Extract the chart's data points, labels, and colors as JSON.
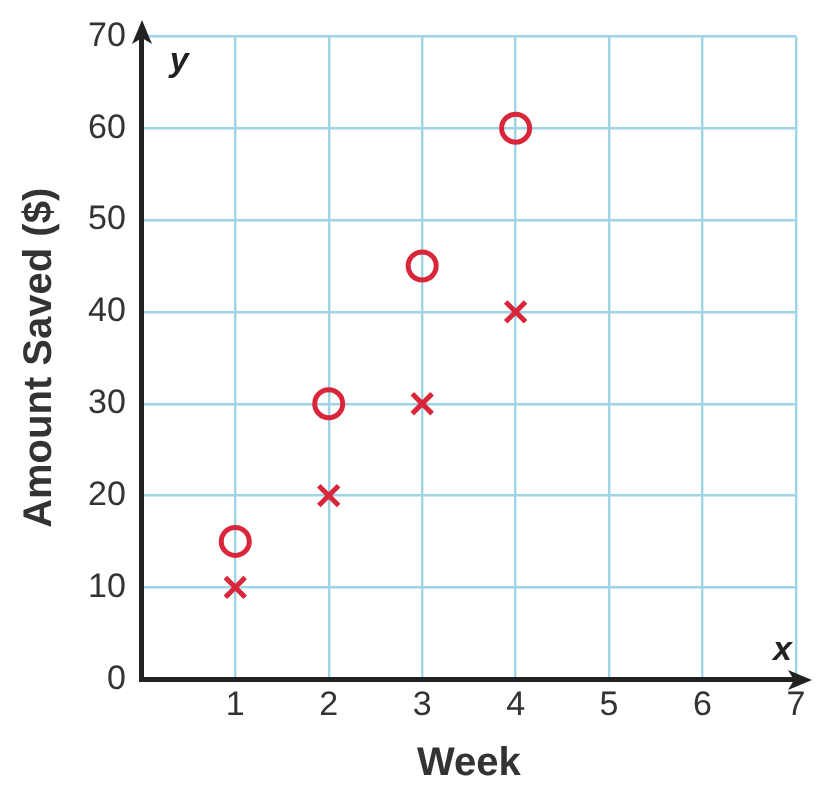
{
  "chart_data": {
    "type": "scatter",
    "xlabel": "Week",
    "ylabel": "Amount Saved ($)",
    "annotations": [
      "y",
      "x"
    ],
    "series": [
      {
        "color": "#d9263a",
        "marker": "circle",
        "x": [
          1,
          2,
          3,
          4
        ],
        "values": [
          15,
          30,
          45,
          60
        ]
      },
      {
        "color": "#d9263a",
        "marker": "cross",
        "x": [
          1,
          2,
          3,
          4
        ],
        "values": [
          10,
          20,
          30,
          40
        ]
      }
    ],
    "xlim": [
      0,
      7
    ],
    "xticks": [
      {
        "value": 0,
        "label": null
      },
      1,
      2,
      3,
      4,
      5,
      6,
      7
    ],
    "ylim": [
      0,
      70
    ],
    "yticks": [
      0,
      10,
      20,
      30,
      40,
      50,
      60,
      70
    ],
    "grid": true,
    "legend": false
  }
}
